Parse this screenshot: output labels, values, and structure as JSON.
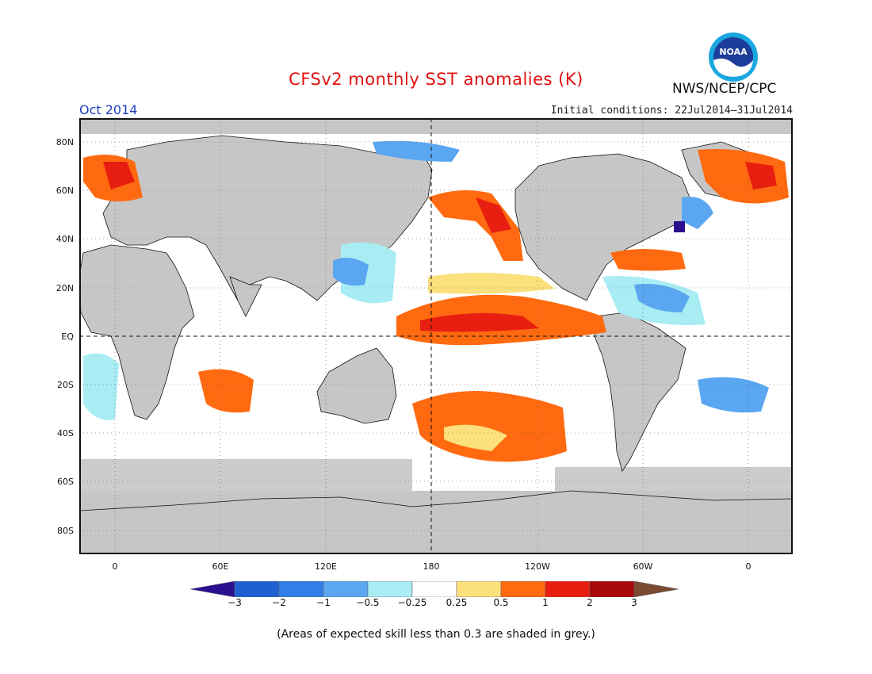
{
  "title": "CFSv2 monthly SST anomalies (K)",
  "month": "Oct 2014",
  "initial_conditions": "Initial conditions: 22Jul2014–31Jul2014",
  "agency": "NWS/NCEP/CPC",
  "logo_text": "NOAA",
  "note": "(Areas of expected skill less than 0.3 are shaded in grey.)",
  "y_ticks": [
    "80N",
    "60N",
    "40N",
    "20N",
    "EQ",
    "20S",
    "40S",
    "60S",
    "80S"
  ],
  "x_ticks": [
    "0",
    "60E",
    "120E",
    "180",
    "120W",
    "60W",
    "0"
  ],
  "colorbar": {
    "labels": [
      "−3",
      "−2",
      "−1",
      "−0.5",
      "−0.25",
      "0.25",
      "0.5",
      "1",
      "2",
      "3"
    ],
    "colors": [
      "#2a0f8f",
      "#1f5fd0",
      "#2f7fe6",
      "#5aa6f0",
      "#a8ecf4",
      "#ffffff",
      "#fbe07c",
      "#ff6a10",
      "#e81e10",
      "#a80808",
      "#7a4a32"
    ]
  },
  "colors": {
    "land": "#c6c6c6",
    "skill_grey": "#c6c6c6",
    "title": "#e01010",
    "month": "#1f3fbf"
  }
}
